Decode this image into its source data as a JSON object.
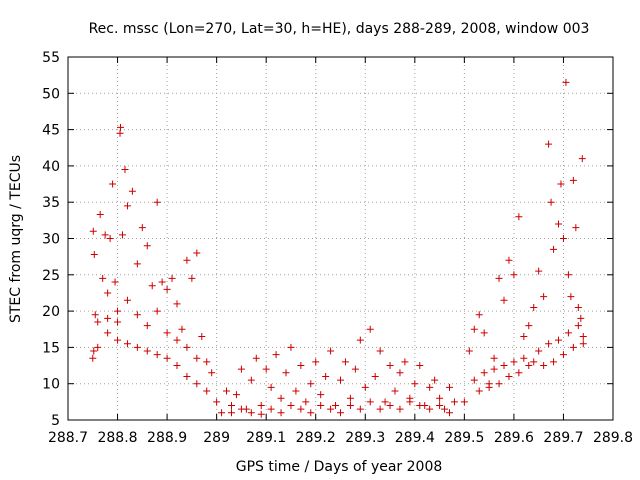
{
  "chart_data": {
    "type": "scatter",
    "title": "Rec. mssc (Lon=270, Lat=30, h=HE), days 288-289, 2008, window 003",
    "xlabel": "GPS time / Days of year 2008",
    "ylabel": "STEC from uqrg / TECUs",
    "xlim": [
      288.7,
      289.8
    ],
    "ylim": [
      5,
      55
    ],
    "x_ticks": [
      "288.7",
      "288.8",
      "288.9",
      "289",
      "289.1",
      "289.2",
      "289.3",
      "289.4",
      "289.5",
      "289.6",
      "289.7",
      "289.8"
    ],
    "y_ticks": [
      "5",
      "10",
      "15",
      "20",
      "25",
      "30",
      "35",
      "40",
      "45",
      "50",
      "55"
    ],
    "grid": true,
    "grid_style": "dotted",
    "marker": "plus",
    "color": "#cc0000",
    "series": [
      {
        "points": [
          [
            288.75,
            13.5
          ],
          [
            288.752,
            14.5
          ],
          [
            288.755,
            19.5
          ],
          [
            288.753,
            27.8
          ],
          [
            288.751,
            31.0
          ],
          [
            288.76,
            18.5
          ],
          [
            288.77,
            24.5
          ],
          [
            288.765,
            33.3
          ],
          [
            288.775,
            30.5
          ],
          [
            288.78,
            22.5
          ],
          [
            288.785,
            30.0
          ],
          [
            288.79,
            37.5
          ],
          [
            288.795,
            24.0
          ],
          [
            288.8,
            20.0
          ],
          [
            288.805,
            44.5
          ],
          [
            288.806,
            45.3
          ],
          [
            288.81,
            30.5
          ],
          [
            288.815,
            39.5
          ],
          [
            288.82,
            34.5
          ],
          [
            288.83,
            36.5
          ],
          [
            288.84,
            26.5
          ],
          [
            288.85,
            31.5
          ],
          [
            288.86,
            29.0
          ],
          [
            288.87,
            23.5
          ],
          [
            288.88,
            35.0
          ],
          [
            288.89,
            24.0
          ],
          [
            288.9,
            23.0
          ],
          [
            288.91,
            24.5
          ],
          [
            288.92,
            21.0
          ],
          [
            288.93,
            17.5
          ],
          [
            288.94,
            27.0
          ],
          [
            288.95,
            24.5
          ],
          [
            288.96,
            28.0
          ],
          [
            288.97,
            16.5
          ],
          [
            288.98,
            13.0
          ],
          [
            288.99,
            11.5
          ],
          [
            288.76,
            15.0
          ],
          [
            288.78,
            17.0
          ],
          [
            288.8,
            16.0
          ],
          [
            288.82,
            15.5
          ],
          [
            288.84,
            15.0
          ],
          [
            288.86,
            14.5
          ],
          [
            288.88,
            14.0
          ],
          [
            288.9,
            13.5
          ],
          [
            288.92,
            12.5
          ],
          [
            288.94,
            11.0
          ],
          [
            288.96,
            10.0
          ],
          [
            288.98,
            9.0
          ],
          [
            288.78,
            19.0
          ],
          [
            288.8,
            18.5
          ],
          [
            288.82,
            21.5
          ],
          [
            288.84,
            19.5
          ],
          [
            288.86,
            18.0
          ],
          [
            288.88,
            20.0
          ],
          [
            288.9,
            17.0
          ],
          [
            288.92,
            16.0
          ],
          [
            288.94,
            15.0
          ],
          [
            288.96,
            13.5
          ],
          [
            289.0,
            7.5
          ],
          [
            289.02,
            9.0
          ],
          [
            289.03,
            6.0
          ],
          [
            289.04,
            8.5
          ],
          [
            289.05,
            12.0
          ],
          [
            289.06,
            6.5
          ],
          [
            289.07,
            10.5
          ],
          [
            289.08,
            13.5
          ],
          [
            289.09,
            7.0
          ],
          [
            289.1,
            12.0
          ],
          [
            289.11,
            9.5
          ],
          [
            289.12,
            14.0
          ],
          [
            289.13,
            8.0
          ],
          [
            289.14,
            11.5
          ],
          [
            289.15,
            15.0
          ],
          [
            289.16,
            9.0
          ],
          [
            289.17,
            12.5
          ],
          [
            289.18,
            7.5
          ],
          [
            289.19,
            10.0
          ],
          [
            289.2,
            13.0
          ],
          [
            289.21,
            8.5
          ],
          [
            289.22,
            11.0
          ],
          [
            289.23,
            14.5
          ],
          [
            289.24,
            7.0
          ],
          [
            289.25,
            10.5
          ],
          [
            289.26,
            13.0
          ],
          [
            289.27,
            8.0
          ],
          [
            289.28,
            12.0
          ],
          [
            289.29,
            16.0
          ],
          [
            289.3,
            9.5
          ],
          [
            289.31,
            17.5
          ],
          [
            289.32,
            11.0
          ],
          [
            289.33,
            14.5
          ],
          [
            289.34,
            7.5
          ],
          [
            289.35,
            12.5
          ],
          [
            289.36,
            9.0
          ],
          [
            289.37,
            11.5
          ],
          [
            289.38,
            13.0
          ],
          [
            289.39,
            8.0
          ],
          [
            289.4,
            10.0
          ],
          [
            289.41,
            12.5
          ],
          [
            289.42,
            7.0
          ],
          [
            289.43,
            9.5
          ],
          [
            289.44,
            10.5
          ],
          [
            289.45,
            8.0
          ],
          [
            289.46,
            6.5
          ],
          [
            289.47,
            9.5
          ],
          [
            289.48,
            7.5
          ],
          [
            289.01,
            6.0
          ],
          [
            289.03,
            7.0
          ],
          [
            289.05,
            6.5
          ],
          [
            289.07,
            6.0
          ],
          [
            289.09,
            5.8
          ],
          [
            289.11,
            6.5
          ],
          [
            289.13,
            6.0
          ],
          [
            289.15,
            7.0
          ],
          [
            289.17,
            6.5
          ],
          [
            289.19,
            6.0
          ],
          [
            289.21,
            7.0
          ],
          [
            289.23,
            6.5
          ],
          [
            289.25,
            6.0
          ],
          [
            289.27,
            7.0
          ],
          [
            289.29,
            6.5
          ],
          [
            289.31,
            7.5
          ],
          [
            289.33,
            6.5
          ],
          [
            289.35,
            7.0
          ],
          [
            289.37,
            6.5
          ],
          [
            289.39,
            7.5
          ],
          [
            289.41,
            7.0
          ],
          [
            289.43,
            6.5
          ],
          [
            289.45,
            7.0
          ],
          [
            289.47,
            6.0
          ],
          [
            289.5,
            7.5
          ],
          [
            289.51,
            14.5
          ],
          [
            289.52,
            17.5
          ],
          [
            289.53,
            19.5
          ],
          [
            289.54,
            17.0
          ],
          [
            289.55,
            10.0
          ],
          [
            289.56,
            13.5
          ],
          [
            289.57,
            24.5
          ],
          [
            289.58,
            21.5
          ],
          [
            289.59,
            27.0
          ],
          [
            289.6,
            25.0
          ],
          [
            289.61,
            33.0
          ],
          [
            289.62,
            16.5
          ],
          [
            289.63,
            18.0
          ],
          [
            289.64,
            20.5
          ],
          [
            289.65,
            25.5
          ],
          [
            289.66,
            22.0
          ],
          [
            289.67,
            43.0
          ],
          [
            289.675,
            35.0
          ],
          [
            289.68,
            28.5
          ],
          [
            289.69,
            32.0
          ],
          [
            289.695,
            37.5
          ],
          [
            289.7,
            30.0
          ],
          [
            289.705,
            51.5
          ],
          [
            289.71,
            25.0
          ],
          [
            289.715,
            22.0
          ],
          [
            289.72,
            38.0
          ],
          [
            289.725,
            31.5
          ],
          [
            289.73,
            20.5
          ],
          [
            289.735,
            19.0
          ],
          [
            289.738,
            41.0
          ],
          [
            289.74,
            16.5
          ],
          [
            289.52,
            10.5
          ],
          [
            289.54,
            11.5
          ],
          [
            289.56,
            12.0
          ],
          [
            289.58,
            12.5
          ],
          [
            289.6,
            13.0
          ],
          [
            289.62,
            13.5
          ],
          [
            289.64,
            13.0
          ],
          [
            289.66,
            12.5
          ],
          [
            289.68,
            13.0
          ],
          [
            289.7,
            14.0
          ],
          [
            289.72,
            15.0
          ],
          [
            289.74,
            15.5
          ],
          [
            289.53,
            9.0
          ],
          [
            289.55,
            9.5
          ],
          [
            289.57,
            10.0
          ],
          [
            289.59,
            11.0
          ],
          [
            289.61,
            11.5
          ],
          [
            289.63,
            12.5
          ],
          [
            289.65,
            14.5
          ],
          [
            289.67,
            15.5
          ],
          [
            289.69,
            16.0
          ],
          [
            289.71,
            17.0
          ],
          [
            289.73,
            18.0
          ]
        ]
      }
    ]
  }
}
